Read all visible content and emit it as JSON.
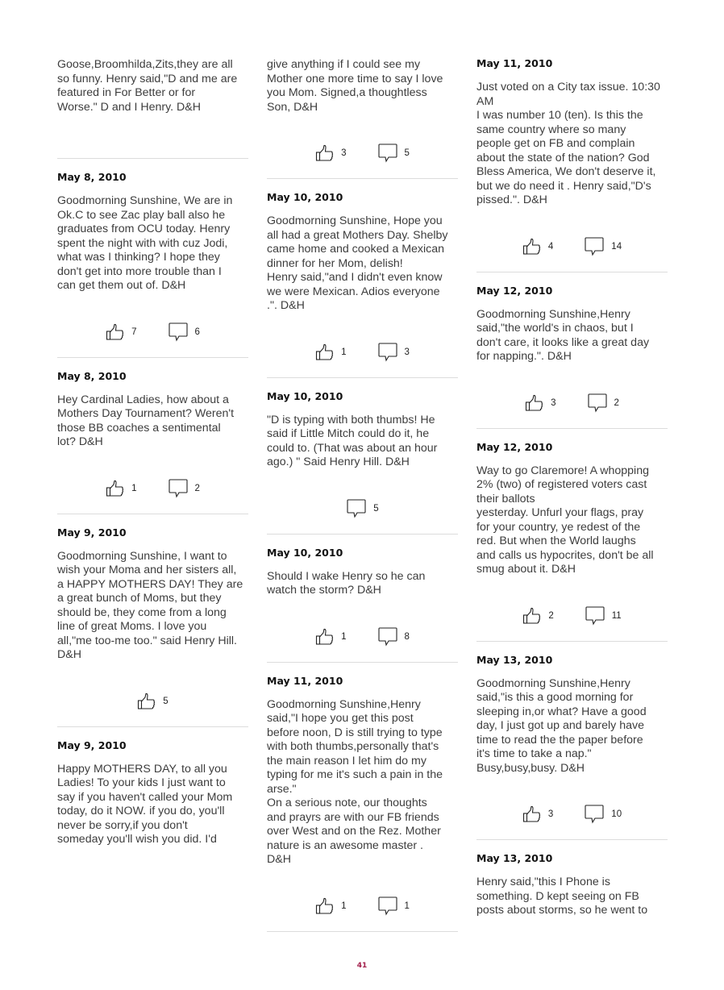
{
  "page_number": "41",
  "colors": {
    "page_number": "#a3204c",
    "divider": "#dcdcdc"
  },
  "icons": {
    "like": "thumbs-up-icon",
    "comment": "speech-bubble-icon"
  },
  "columns": [
    {
      "posts": [
        {
          "date": "",
          "text": "Goose,Broomhilda,Zits,they are all\nso funny. Henry said,\"D and me are\nfeatured in For Better or for\nWorse.\" D and I Henry. D&H",
          "likes": "",
          "comments": "",
          "divider": true
        },
        {
          "date": "May 8, 2010",
          "text": "Goodmorning Sunshine, We are in\nOk.C to see Zac play ball also he\ngraduates from OCU today. Henry\nspent the night with with cuz Jodi,\nwhat was I thinking? I hope they\ndon't get into more trouble than I\ncan get them out of. D&H",
          "likes": "7",
          "comments": "6",
          "divider": true
        },
        {
          "date": "May 8, 2010",
          "text": "Hey Cardinal Ladies, how about a\nMothers Day Tournament? Weren't\nthose BB coaches a sentimental\nlot? D&H",
          "likes": "1",
          "comments": "2",
          "divider": true
        },
        {
          "date": "May 9, 2010",
          "text": "Goodmorning Sunshine, I want to\nwish your Moma and her sisters all,\na HAPPY MOTHERS DAY! They are\na great bunch of Moms, but they\nshould be, they come from a long\nline of great Moms. I love you\nall,\"me too-me too.\" said Henry Hill.\nD&H",
          "likes": "5",
          "comments": "",
          "divider": true
        },
        {
          "date": "May 9, 2010",
          "text": "Happy MOTHERS DAY, to all you\nLadies! To your kids I just want to\nsay if you haven't called your Mom\ntoday, do it NOW. if you do, you'll\nnever be sorry,if you don't\nsomeday you'll wish you did. I'd",
          "likes": "",
          "comments": "",
          "divider": false
        }
      ]
    },
    {
      "posts": [
        {
          "date": "",
          "text": "give anything if I could see my\nMother one more time to say I love\nyou Mom. Signed,a thoughtless\nSon, D&H",
          "likes": "3",
          "comments": "5",
          "divider": true
        },
        {
          "date": "May 10, 2010",
          "text": "Goodmorning Sunshine, Hope you\nall had a great Mothers Day. Shelby\ncame home and cooked a Mexican\ndinner for her Mom, delish!\nHenry said,\"and I didn't even know\nwe were Mexican. Adios everyone\n.\". D&H",
          "likes": "1",
          "comments": "3",
          "divider": true
        },
        {
          "date": "May 10, 2010",
          "text": "\"D is typing with both thumbs! He\nsaid if Little Mitch could do it, he\ncould to. (That was about an hour\nago.) \" Said Henry Hill. D&H",
          "likes": "",
          "comments": "5",
          "divider": true
        },
        {
          "date": "May 10, 2010",
          "text": "Should I wake Henry so he can\nwatch the storm? D&H",
          "likes": "1",
          "comments": "8",
          "divider": true
        },
        {
          "date": "May 11, 2010",
          "text": "Goodmorning Sunshine,Henry\nsaid,\"I hope you get this post\nbefore noon, D is still trying to type\nwith both thumbs,personally that's\nthe main reason I let him do my\ntyping for me it's such a pain in the\narse.\"\nOn a serious note, our thoughts\nand prayrs are with our FB friends\nover West and on the Rez. Mother\nnature is an awesome master .\nD&H",
          "likes": "1",
          "comments": "1",
          "divider": true
        }
      ]
    },
    {
      "posts": [
        {
          "date": "May 11, 2010",
          "text": "Just voted on a City tax issue. 10:30\nAM\nI was number 10 (ten). Is this the\nsame country where so many\npeople get on FB and complain\nabout the state of the nation? God\nBless America, We don't deserve it,\nbut we do need it . Henry said,\"D's\npissed.\". D&H",
          "likes": "4",
          "comments": "14",
          "divider": true
        },
        {
          "date": "May 12, 2010",
          "text": "Goodmorning Sunshine,Henry\nsaid,\"the world's in chaos, but I\ndon't care, it looks like a great day\nfor napping.\". D&H",
          "likes": "3",
          "comments": "2",
          "divider": true
        },
        {
          "date": "May 12, 2010",
          "text": "Way to go Claremore! A whopping\n2% (two) of registered voters cast\ntheir ballots\nyesterday. Unfurl your flags, pray\nfor your country, ye redest of the\nred. But when the World laughs\nand calls us hypocrites, don't be all\nsmug about it. D&H",
          "likes": "2",
          "comments": "11",
          "divider": true
        },
        {
          "date": "May 13, 2010",
          "text": "Goodmorning Sunshine,Henry\nsaid,\"is this a good morning for\nsleeping in,or what? Have a good\nday, I just got up and barely have\ntime to read the the paper before\nit's time to take a nap.\"\nBusy,busy,busy. D&H",
          "likes": "3",
          "comments": "10",
          "divider": true
        },
        {
          "date": "May 13, 2010",
          "text": "Henry said,\"this I Phone is\nsomething. D kept seeing on FB\nposts about storms, so he went to",
          "likes": "",
          "comments": "",
          "divider": false
        }
      ]
    }
  ]
}
